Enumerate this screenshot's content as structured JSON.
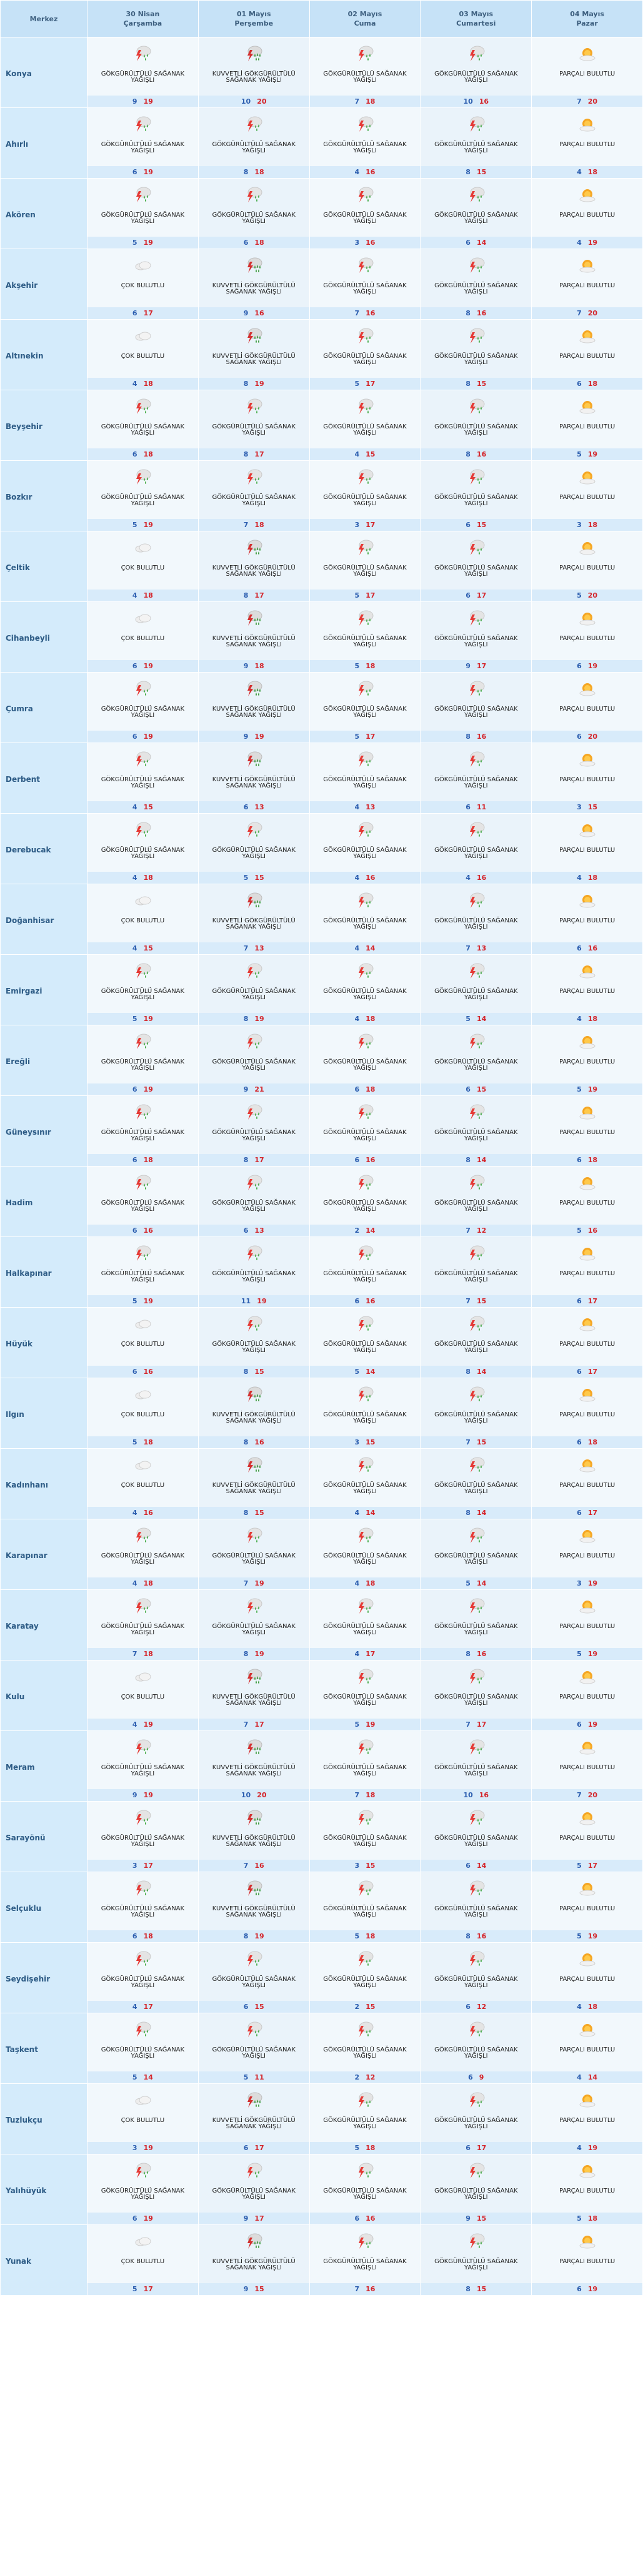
{
  "header": {
    "centre_label": "Merkez",
    "days": [
      {
        "date": "30 Nisan",
        "weekday": "Çarşamba"
      },
      {
        "date": "01 Mayıs",
        "weekday": "Perşembe"
      },
      {
        "date": "02 Mayıs",
        "weekday": "Cuma"
      },
      {
        "date": "03 Mayıs",
        "weekday": "Cumartesi"
      },
      {
        "date": "04 Mayıs",
        "weekday": "Pazar"
      }
    ]
  },
  "conditions": {
    "gs": {
      "label": "GÖKGÜRÜLTÜLÜ SAĞANAK YAĞIŞLI",
      "icon": "thunderstorm-icon"
    },
    "kgs": {
      "label": "KUVVETLİ GÖKGÜRÜLTÜLÜ SAĞANAK YAĞIŞLI",
      "icon": "heavy-thunderstorm-icon"
    },
    "cb": {
      "label": "ÇOK BULUTLU",
      "icon": "cloud-icon"
    },
    "pb": {
      "label": "PARÇALI BULUTLU",
      "icon": "partly-cloudy-icon"
    }
  },
  "colors": {
    "header_bg": "#c6e2f7",
    "temp_bar": "#d8ebfa",
    "min_temp": "#2d5fb0",
    "max_temp": "#d4262c"
  },
  "rows": [
    {
      "name": "Konya",
      "days": [
        {
          "c": "gs",
          "min": "9",
          "max": "19"
        },
        {
          "c": "kgs",
          "min": "10",
          "max": "20"
        },
        {
          "c": "gs",
          "min": "7",
          "max": "18"
        },
        {
          "c": "gs",
          "min": "10",
          "max": "16"
        },
        {
          "c": "pb",
          "min": "7",
          "max": "20"
        }
      ]
    },
    {
      "name": "Ahırlı",
      "days": [
        {
          "c": "gs",
          "min": "6",
          "max": "19"
        },
        {
          "c": "gs",
          "min": "8",
          "max": "18"
        },
        {
          "c": "gs",
          "min": "4",
          "max": "16"
        },
        {
          "c": "gs",
          "min": "8",
          "max": "15"
        },
        {
          "c": "pb",
          "min": "4",
          "max": "18"
        }
      ]
    },
    {
      "name": "Akören",
      "days": [
        {
          "c": "gs",
          "min": "5",
          "max": "19"
        },
        {
          "c": "gs",
          "min": "6",
          "max": "18"
        },
        {
          "c": "gs",
          "min": "3",
          "max": "16"
        },
        {
          "c": "gs",
          "min": "6",
          "max": "14"
        },
        {
          "c": "pb",
          "min": "4",
          "max": "19"
        }
      ]
    },
    {
      "name": "Akşehir",
      "days": [
        {
          "c": "cb",
          "min": "6",
          "max": "17"
        },
        {
          "c": "kgs",
          "min": "9",
          "max": "16"
        },
        {
          "c": "gs",
          "min": "7",
          "max": "16"
        },
        {
          "c": "gs",
          "min": "8",
          "max": "16"
        },
        {
          "c": "pb",
          "min": "7",
          "max": "20"
        }
      ]
    },
    {
      "name": "Altınekin",
      "days": [
        {
          "c": "cb",
          "min": "4",
          "max": "18"
        },
        {
          "c": "kgs",
          "min": "8",
          "max": "19"
        },
        {
          "c": "gs",
          "min": "5",
          "max": "17"
        },
        {
          "c": "gs",
          "min": "8",
          "max": "15"
        },
        {
          "c": "pb",
          "min": "6",
          "max": "18"
        }
      ]
    },
    {
      "name": "Beyşehir",
      "days": [
        {
          "c": "gs",
          "min": "6",
          "max": "18"
        },
        {
          "c": "gs",
          "min": "8",
          "max": "17"
        },
        {
          "c": "gs",
          "min": "4",
          "max": "15"
        },
        {
          "c": "gs",
          "min": "8",
          "max": "16"
        },
        {
          "c": "pb",
          "min": "5",
          "max": "19"
        }
      ]
    },
    {
      "name": "Bozkır",
      "days": [
        {
          "c": "gs",
          "min": "5",
          "max": "19"
        },
        {
          "c": "gs",
          "min": "7",
          "max": "18"
        },
        {
          "c": "gs",
          "min": "3",
          "max": "17"
        },
        {
          "c": "gs",
          "min": "6",
          "max": "15"
        },
        {
          "c": "pb",
          "min": "3",
          "max": "18"
        }
      ]
    },
    {
      "name": "Çeltik",
      "days": [
        {
          "c": "cb",
          "min": "4",
          "max": "18"
        },
        {
          "c": "kgs",
          "min": "8",
          "max": "17"
        },
        {
          "c": "gs",
          "min": "5",
          "max": "17"
        },
        {
          "c": "gs",
          "min": "6",
          "max": "17"
        },
        {
          "c": "pb",
          "min": "5",
          "max": "20"
        }
      ]
    },
    {
      "name": "Cihanbeyli",
      "days": [
        {
          "c": "cb",
          "min": "6",
          "max": "19"
        },
        {
          "c": "kgs",
          "min": "9",
          "max": "18"
        },
        {
          "c": "gs",
          "min": "5",
          "max": "18"
        },
        {
          "c": "gs",
          "min": "9",
          "max": "17"
        },
        {
          "c": "pb",
          "min": "6",
          "max": "19"
        }
      ]
    },
    {
      "name": "Çumra",
      "days": [
        {
          "c": "gs",
          "min": "6",
          "max": "19"
        },
        {
          "c": "kgs",
          "min": "9",
          "max": "19"
        },
        {
          "c": "gs",
          "min": "5",
          "max": "17"
        },
        {
          "c": "gs",
          "min": "8",
          "max": "16"
        },
        {
          "c": "pb",
          "min": "6",
          "max": "20"
        }
      ]
    },
    {
      "name": "Derbent",
      "days": [
        {
          "c": "gs",
          "min": "4",
          "max": "15"
        },
        {
          "c": "kgs",
          "min": "6",
          "max": "13"
        },
        {
          "c": "gs",
          "min": "4",
          "max": "13"
        },
        {
          "c": "gs",
          "min": "6",
          "max": "11"
        },
        {
          "c": "pb",
          "min": "3",
          "max": "15"
        }
      ]
    },
    {
      "name": "Derebucak",
      "days": [
        {
          "c": "gs",
          "min": "4",
          "max": "18"
        },
        {
          "c": "gs",
          "min": "5",
          "max": "15"
        },
        {
          "c": "gs",
          "min": "4",
          "max": "16"
        },
        {
          "c": "gs",
          "min": "4",
          "max": "16"
        },
        {
          "c": "pb",
          "min": "4",
          "max": "18"
        }
      ]
    },
    {
      "name": "Doğanhisar",
      "days": [
        {
          "c": "cb",
          "min": "4",
          "max": "15"
        },
        {
          "c": "kgs",
          "min": "7",
          "max": "13"
        },
        {
          "c": "gs",
          "min": "4",
          "max": "14"
        },
        {
          "c": "gs",
          "min": "7",
          "max": "13"
        },
        {
          "c": "pb",
          "min": "6",
          "max": "16"
        }
      ]
    },
    {
      "name": "Emirgazi",
      "days": [
        {
          "c": "gs",
          "min": "5",
          "max": "19"
        },
        {
          "c": "gs",
          "min": "8",
          "max": "19"
        },
        {
          "c": "gs",
          "min": "4",
          "max": "18"
        },
        {
          "c": "gs",
          "min": "5",
          "max": "14"
        },
        {
          "c": "pb",
          "min": "4",
          "max": "18"
        }
      ]
    },
    {
      "name": "Ereğli",
      "days": [
        {
          "c": "gs",
          "min": "6",
          "max": "19"
        },
        {
          "c": "gs",
          "min": "9",
          "max": "21"
        },
        {
          "c": "gs",
          "min": "6",
          "max": "18"
        },
        {
          "c": "gs",
          "min": "6",
          "max": "15"
        },
        {
          "c": "pb",
          "min": "5",
          "max": "19"
        }
      ]
    },
    {
      "name": "Güneysınır",
      "days": [
        {
          "c": "gs",
          "min": "6",
          "max": "18"
        },
        {
          "c": "gs",
          "min": "8",
          "max": "17"
        },
        {
          "c": "gs",
          "min": "6",
          "max": "16"
        },
        {
          "c": "gs",
          "min": "8",
          "max": "14"
        },
        {
          "c": "pb",
          "min": "6",
          "max": "18"
        }
      ]
    },
    {
      "name": "Hadim",
      "days": [
        {
          "c": "gs",
          "min": "6",
          "max": "16"
        },
        {
          "c": "gs",
          "min": "6",
          "max": "13"
        },
        {
          "c": "gs",
          "min": "2",
          "max": "14"
        },
        {
          "c": "gs",
          "min": "7",
          "max": "12"
        },
        {
          "c": "pb",
          "min": "5",
          "max": "16"
        }
      ]
    },
    {
      "name": "Halkapınar",
      "days": [
        {
          "c": "gs",
          "min": "5",
          "max": "19"
        },
        {
          "c": "gs",
          "min": "11",
          "max": "19"
        },
        {
          "c": "gs",
          "min": "6",
          "max": "16"
        },
        {
          "c": "gs",
          "min": "7",
          "max": "15"
        },
        {
          "c": "pb",
          "min": "6",
          "max": "17"
        }
      ]
    },
    {
      "name": "Hüyük",
      "days": [
        {
          "c": "cb",
          "min": "6",
          "max": "16"
        },
        {
          "c": "gs",
          "min": "8",
          "max": "15"
        },
        {
          "c": "gs",
          "min": "5",
          "max": "14"
        },
        {
          "c": "gs",
          "min": "8",
          "max": "14"
        },
        {
          "c": "pb",
          "min": "6",
          "max": "17"
        }
      ]
    },
    {
      "name": "Ilgın",
      "days": [
        {
          "c": "cb",
          "min": "5",
          "max": "18"
        },
        {
          "c": "kgs",
          "min": "8",
          "max": "16"
        },
        {
          "c": "gs",
          "min": "3",
          "max": "15"
        },
        {
          "c": "gs",
          "min": "7",
          "max": "15"
        },
        {
          "c": "pb",
          "min": "6",
          "max": "18"
        }
      ]
    },
    {
      "name": "Kadınhanı",
      "days": [
        {
          "c": "cb",
          "min": "4",
          "max": "16"
        },
        {
          "c": "kgs",
          "min": "8",
          "max": "15"
        },
        {
          "c": "gs",
          "min": "4",
          "max": "14"
        },
        {
          "c": "gs",
          "min": "8",
          "max": "14"
        },
        {
          "c": "pb",
          "min": "6",
          "max": "17"
        }
      ]
    },
    {
      "name": "Karapınar",
      "days": [
        {
          "c": "gs",
          "min": "4",
          "max": "18"
        },
        {
          "c": "gs",
          "min": "7",
          "max": "19"
        },
        {
          "c": "gs",
          "min": "4",
          "max": "18"
        },
        {
          "c": "gs",
          "min": "5",
          "max": "14"
        },
        {
          "c": "pb",
          "min": "3",
          "max": "19"
        }
      ]
    },
    {
      "name": "Karatay",
      "days": [
        {
          "c": "gs",
          "min": "7",
          "max": "18"
        },
        {
          "c": "gs",
          "min": "8",
          "max": "19"
        },
        {
          "c": "gs",
          "min": "4",
          "max": "17"
        },
        {
          "c": "gs",
          "min": "8",
          "max": "16"
        },
        {
          "c": "pb",
          "min": "5",
          "max": "19"
        }
      ]
    },
    {
      "name": "Kulu",
      "days": [
        {
          "c": "cb",
          "min": "4",
          "max": "19"
        },
        {
          "c": "kgs",
          "min": "7",
          "max": "17"
        },
        {
          "c": "gs",
          "min": "5",
          "max": "19"
        },
        {
          "c": "gs",
          "min": "7",
          "max": "17"
        },
        {
          "c": "pb",
          "min": "6",
          "max": "19"
        }
      ]
    },
    {
      "name": "Meram",
      "days": [
        {
          "c": "gs",
          "min": "9",
          "max": "19"
        },
        {
          "c": "kgs",
          "min": "10",
          "max": "20"
        },
        {
          "c": "gs",
          "min": "7",
          "max": "18"
        },
        {
          "c": "gs",
          "min": "10",
          "max": "16"
        },
        {
          "c": "pb",
          "min": "7",
          "max": "20"
        }
      ]
    },
    {
      "name": "Sarayönü",
      "days": [
        {
          "c": "gs",
          "min": "3",
          "max": "17"
        },
        {
          "c": "kgs",
          "min": "7",
          "max": "16"
        },
        {
          "c": "gs",
          "min": "3",
          "max": "15"
        },
        {
          "c": "gs",
          "min": "6",
          "max": "14"
        },
        {
          "c": "pb",
          "min": "5",
          "max": "17"
        }
      ]
    },
    {
      "name": "Selçuklu",
      "days": [
        {
          "c": "gs",
          "min": "6",
          "max": "18"
        },
        {
          "c": "kgs",
          "min": "8",
          "max": "19"
        },
        {
          "c": "gs",
          "min": "5",
          "max": "18"
        },
        {
          "c": "gs",
          "min": "8",
          "max": "16"
        },
        {
          "c": "pb",
          "min": "5",
          "max": "19"
        }
      ]
    },
    {
      "name": "Seydişehir",
      "days": [
        {
          "c": "gs",
          "min": "4",
          "max": "17"
        },
        {
          "c": "gs",
          "min": "6",
          "max": "15"
        },
        {
          "c": "gs",
          "min": "2",
          "max": "15"
        },
        {
          "c": "gs",
          "min": "6",
          "max": "12"
        },
        {
          "c": "pb",
          "min": "4",
          "max": "18"
        }
      ]
    },
    {
      "name": "Taşkent",
      "days": [
        {
          "c": "gs",
          "min": "5",
          "max": "14"
        },
        {
          "c": "gs",
          "min": "5",
          "max": "11"
        },
        {
          "c": "gs",
          "min": "2",
          "max": "12"
        },
        {
          "c": "gs",
          "min": "6",
          "max": "9"
        },
        {
          "c": "pb",
          "min": "4",
          "max": "14"
        }
      ]
    },
    {
      "name": "Tuzlukçu",
      "days": [
        {
          "c": "cb",
          "min": "3",
          "max": "19"
        },
        {
          "c": "kgs",
          "min": "6",
          "max": "17"
        },
        {
          "c": "gs",
          "min": "5",
          "max": "18"
        },
        {
          "c": "gs",
          "min": "6",
          "max": "17"
        },
        {
          "c": "pb",
          "min": "4",
          "max": "19"
        }
      ]
    },
    {
      "name": "Yalıhüyük",
      "days": [
        {
          "c": "gs",
          "min": "6",
          "max": "19"
        },
        {
          "c": "gs",
          "min": "9",
          "max": "17"
        },
        {
          "c": "gs",
          "min": "6",
          "max": "16"
        },
        {
          "c": "gs",
          "min": "9",
          "max": "15"
        },
        {
          "c": "pb",
          "min": "5",
          "max": "18"
        }
      ]
    },
    {
      "name": "Yunak",
      "days": [
        {
          "c": "cb",
          "min": "5",
          "max": "17"
        },
        {
          "c": "kgs",
          "min": "9",
          "max": "15"
        },
        {
          "c": "gs",
          "min": "7",
          "max": "16"
        },
        {
          "c": "gs",
          "min": "8",
          "max": "15"
        },
        {
          "c": "pb",
          "min": "6",
          "max": "19"
        }
      ]
    }
  ]
}
